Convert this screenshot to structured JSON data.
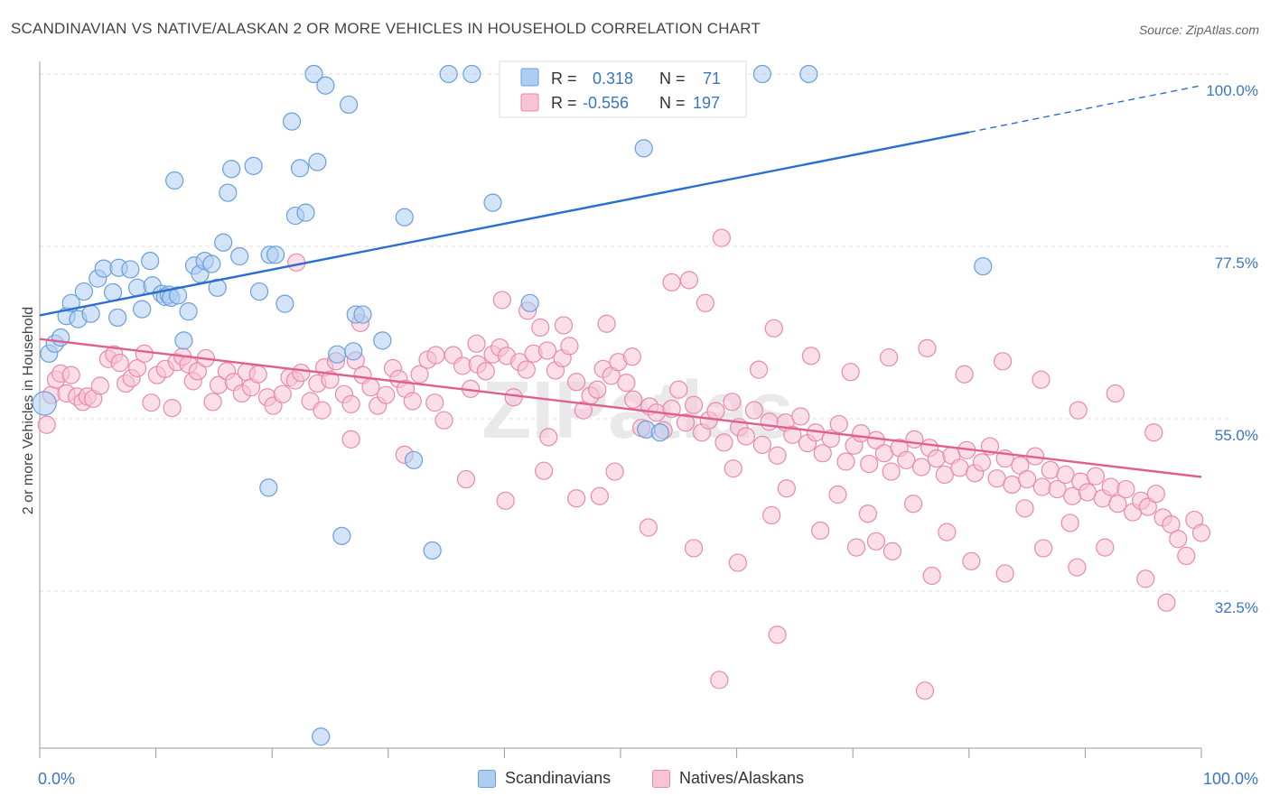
{
  "header": {
    "title": "SCANDINAVIAN VS NATIVE/ALASKAN 2 OR MORE VEHICLES IN HOUSEHOLD CORRELATION CHART",
    "source": "Source: ZipAtlas.com"
  },
  "watermark": "ZIPatlas",
  "colors": {
    "blue_fill": "#aecdf2",
    "blue_stroke": "#6a9fd8",
    "blue_line": "#2a6fcf",
    "pink_fill": "#f7c3d5",
    "pink_stroke": "#e88aab",
    "pink_line": "#e05f8d",
    "value_text": "#3a74c8"
  },
  "chart_data": {
    "type": "scatter",
    "ylabel": "2 or more Vehicles in Household",
    "x_range": [
      0,
      100
    ],
    "y_range": [
      12,
      100
    ],
    "x_tick_labels": [
      "0.0%",
      "100.0%"
    ],
    "y_ticks": [
      {
        "value": 100.0,
        "label": "100.0%"
      },
      {
        "value": 77.5,
        "label": "77.5%"
      },
      {
        "value": 55.0,
        "label": "55.0%"
      },
      {
        "value": 32.5,
        "label": "32.5%"
      }
    ],
    "legend_box": {
      "rows": [
        {
          "r_label": "R =",
          "r_value": "0.318",
          "n_label": "N =",
          "n_value": "71"
        },
        {
          "r_label": "R =",
          "r_value": "-0.556",
          "n_label": "N =",
          "n_value": "197"
        }
      ]
    },
    "series": [
      {
        "name": "Scandinavians",
        "trend": {
          "x0": 0,
          "y0": 68.5,
          "x1": 80,
          "y1": 92.4,
          "dash_to_x": 100,
          "dash_to_y": 98.5
        },
        "points": [
          [
            0.4,
            57
          ],
          [
            0.8,
            63.5
          ],
          [
            1.3,
            64.8
          ],
          [
            1.8,
            65.6
          ],
          [
            2.3,
            68.4
          ],
          [
            2.7,
            70.1
          ],
          [
            3.3,
            68.0
          ],
          [
            3.8,
            71.6
          ],
          [
            4.4,
            68.7
          ],
          [
            5.0,
            73.3
          ],
          [
            5.5,
            74.6
          ],
          [
            6.3,
            71.5
          ],
          [
            6.7,
            68.2
          ],
          [
            6.8,
            74.7
          ],
          [
            7.8,
            74.5
          ],
          [
            8.4,
            72.1
          ],
          [
            8.8,
            69.3
          ],
          [
            9.5,
            75.6
          ],
          [
            9.7,
            72.4
          ],
          [
            10.5,
            71.3
          ],
          [
            10.8,
            70.9
          ],
          [
            11.1,
            71.2
          ],
          [
            11.3,
            70.8
          ],
          [
            11.6,
            86.1
          ],
          [
            11.9,
            71.1
          ],
          [
            12.4,
            65.2
          ],
          [
            12.8,
            69.0
          ],
          [
            13.3,
            75.0
          ],
          [
            13.8,
            73.9
          ],
          [
            14.2,
            75.6
          ],
          [
            14.8,
            75.2
          ],
          [
            15.3,
            72.1
          ],
          [
            15.8,
            78.0
          ],
          [
            16.2,
            84.5
          ],
          [
            16.5,
            87.6
          ],
          [
            17.2,
            76.2
          ],
          [
            18.4,
            88.0
          ],
          [
            18.9,
            71.6
          ],
          [
            19.7,
            46.0
          ],
          [
            19.8,
            76.4
          ],
          [
            20.3,
            76.4
          ],
          [
            21.1,
            70.0
          ],
          [
            21.7,
            93.8
          ],
          [
            22.0,
            81.5
          ],
          [
            22.4,
            87.7
          ],
          [
            22.9,
            81.9
          ],
          [
            23.6,
            100.0
          ],
          [
            23.9,
            88.5
          ],
          [
            24.2,
            13.5
          ],
          [
            24.6,
            98.5
          ],
          [
            25.6,
            63.4
          ],
          [
            26.0,
            39.7
          ],
          [
            26.6,
            96.0
          ],
          [
            27.0,
            63.8
          ],
          [
            27.2,
            68.6
          ],
          [
            27.8,
            68.6
          ],
          [
            29.5,
            65.2
          ],
          [
            31.4,
            81.3
          ],
          [
            32.2,
            49.6
          ],
          [
            33.8,
            37.8
          ],
          [
            35.2,
            100.0
          ],
          [
            37.2,
            100.0
          ],
          [
            39.0,
            83.2
          ],
          [
            42.2,
            70.1
          ],
          [
            47.3,
            100.0
          ],
          [
            52.0,
            90.3
          ],
          [
            52.2,
            53.6
          ],
          [
            53.4,
            53.2
          ],
          [
            62.2,
            100.0
          ],
          [
            66.2,
            100.0
          ],
          [
            81.2,
            74.9
          ]
        ]
      },
      {
        "name": "Natives/Alaskans",
        "trend": {
          "x0": 0,
          "y0": 65.4,
          "x1": 100,
          "y1": 47.4
        },
        "points": [
          [
            0.6,
            54.2
          ],
          [
            1.0,
            58.1
          ],
          [
            1.4,
            60.1
          ],
          [
            1.8,
            60.9
          ],
          [
            2.3,
            58.3
          ],
          [
            2.7,
            60.7
          ],
          [
            3.2,
            57.9
          ],
          [
            3.7,
            57.2
          ],
          [
            4.1,
            57.9
          ],
          [
            4.6,
            57.6
          ],
          [
            5.2,
            59.3
          ],
          [
            5.9,
            62.8
          ],
          [
            6.4,
            63.4
          ],
          [
            6.9,
            62.3
          ],
          [
            7.4,
            59.6
          ],
          [
            7.9,
            60.3
          ],
          [
            8.4,
            61.6
          ],
          [
            9.0,
            63.5
          ],
          [
            9.6,
            57.1
          ],
          [
            10.1,
            60.7
          ],
          [
            10.8,
            61.5
          ],
          [
            11.4,
            56.4
          ],
          [
            11.8,
            62.4
          ],
          [
            12.3,
            63.1
          ],
          [
            12.8,
            62.1
          ],
          [
            13.2,
            59.9
          ],
          [
            13.6,
            61.2
          ],
          [
            14.3,
            62.9
          ],
          [
            14.9,
            57.2
          ],
          [
            15.4,
            59.4
          ],
          [
            16.1,
            61.2
          ],
          [
            16.7,
            59.8
          ],
          [
            17.4,
            58.3
          ],
          [
            17.8,
            61.1
          ],
          [
            18.2,
            59.1
          ],
          [
            18.8,
            60.8
          ],
          [
            19.6,
            57.8
          ],
          [
            20.1,
            56.7
          ],
          [
            20.9,
            58.2
          ],
          [
            21.5,
            60.4
          ],
          [
            22.0,
            60.0
          ],
          [
            22.5,
            61.0
          ],
          [
            23.3,
            57.3
          ],
          [
            23.9,
            59.6
          ],
          [
            24.5,
            61.7
          ],
          [
            25.0,
            60.1
          ],
          [
            25.5,
            62.5
          ],
          [
            26.2,
            58.2
          ],
          [
            26.8,
            56.9
          ],
          [
            27.2,
            62.6
          ],
          [
            27.8,
            60.7
          ],
          [
            28.5,
            59.1
          ],
          [
            29.1,
            56.7
          ],
          [
            29.8,
            58.1
          ],
          [
            30.4,
            61.6
          ],
          [
            30.9,
            60.2
          ],
          [
            31.5,
            58.9
          ],
          [
            32.1,
            57.3
          ],
          [
            32.7,
            60.8
          ],
          [
            33.4,
            62.7
          ],
          [
            34.0,
            57.1
          ],
          [
            34.8,
            54.8
          ],
          [
            35.6,
            63.3
          ],
          [
            36.4,
            61.9
          ],
          [
            37.1,
            58.9
          ],
          [
            37.7,
            62.1
          ],
          [
            38.4,
            61.2
          ],
          [
            39.0,
            63.4
          ],
          [
            39.6,
            64.3
          ],
          [
            40.2,
            63.2
          ],
          [
            40.8,
            57.8
          ],
          [
            41.3,
            62.4
          ],
          [
            41.9,
            61.4
          ],
          [
            42.5,
            63.5
          ],
          [
            43.1,
            66.9
          ],
          [
            43.7,
            63.9
          ],
          [
            44.4,
            61.3
          ],
          [
            45.0,
            62.9
          ],
          [
            45.6,
            64.5
          ],
          [
            46.2,
            59.8
          ],
          [
            46.8,
            56.1
          ],
          [
            47.4,
            58.0
          ],
          [
            48.0,
            58.8
          ],
          [
            48.5,
            61.5
          ],
          [
            49.2,
            60.6
          ],
          [
            49.8,
            62.4
          ],
          [
            50.5,
            59.7
          ],
          [
            51.1,
            57.5
          ],
          [
            51.8,
            53.8
          ],
          [
            52.5,
            56.6
          ],
          [
            53.1,
            55.8
          ],
          [
            53.7,
            53.5
          ],
          [
            54.4,
            56.3
          ],
          [
            55.0,
            58.8
          ],
          [
            55.6,
            54.5
          ],
          [
            56.3,
            56.8
          ],
          [
            57.0,
            53.2
          ],
          [
            57.6,
            54.8
          ],
          [
            58.2,
            56.0
          ],
          [
            58.9,
            51.9
          ],
          [
            59.6,
            57.2
          ],
          [
            60.2,
            53.9
          ],
          [
            60.8,
            52.7
          ],
          [
            61.5,
            56.1
          ],
          [
            62.2,
            51.6
          ],
          [
            62.8,
            54.6
          ],
          [
            63.5,
            50.2
          ],
          [
            64.2,
            54.5
          ],
          [
            64.8,
            52.9
          ],
          [
            65.5,
            55.3
          ],
          [
            66.1,
            51.8
          ],
          [
            66.8,
            53.2
          ],
          [
            67.4,
            50.5
          ],
          [
            68.1,
            52.4
          ],
          [
            68.8,
            54.3
          ],
          [
            69.4,
            49.4
          ],
          [
            70.1,
            51.5
          ],
          [
            70.7,
            53.1
          ],
          [
            71.4,
            49.1
          ],
          [
            72.0,
            52.2
          ],
          [
            72.7,
            50.5
          ],
          [
            73.3,
            48.1
          ],
          [
            74.0,
            51.2
          ],
          [
            74.6,
            49.6
          ],
          [
            75.3,
            52.3
          ],
          [
            75.9,
            48.7
          ],
          [
            76.6,
            51.2
          ],
          [
            77.2,
            49.8
          ],
          [
            77.9,
            47.7
          ],
          [
            78.5,
            50.2
          ],
          [
            79.2,
            48.6
          ],
          [
            79.8,
            50.9
          ],
          [
            80.5,
            47.9
          ],
          [
            81.1,
            49.3
          ],
          [
            81.8,
            51.4
          ],
          [
            82.4,
            47.2
          ],
          [
            83.1,
            49.8
          ],
          [
            83.7,
            46.4
          ],
          [
            84.4,
            48.9
          ],
          [
            85.0,
            47.1
          ],
          [
            85.7,
            50.1
          ],
          [
            86.3,
            46.1
          ],
          [
            87.0,
            48.3
          ],
          [
            87.6,
            45.8
          ],
          [
            88.3,
            47.7
          ],
          [
            88.9,
            44.9
          ],
          [
            89.6,
            46.8
          ],
          [
            90.2,
            45.4
          ],
          [
            90.9,
            47.5
          ],
          [
            91.5,
            44.6
          ],
          [
            92.2,
            46.1
          ],
          [
            92.8,
            43.9
          ],
          [
            93.5,
            45.8
          ],
          [
            94.1,
            42.8
          ],
          [
            94.8,
            44.3
          ],
          [
            95.4,
            43.5
          ],
          [
            96.1,
            45.2
          ],
          [
            96.7,
            42.1
          ],
          [
            97.4,
            41.2
          ],
          [
            98.0,
            39.3
          ],
          [
            98.7,
            37.1
          ],
          [
            99.4,
            41.8
          ],
          [
            100.0,
            40.1
          ],
          [
            22.1,
            75.4
          ],
          [
            27.6,
            67.5
          ],
          [
            34.1,
            63.3
          ],
          [
            37.6,
            64.8
          ],
          [
            39.8,
            70.5
          ],
          [
            42.0,
            69.1
          ],
          [
            45.1,
            67.2
          ],
          [
            48.8,
            67.4
          ],
          [
            51.0,
            63.1
          ],
          [
            54.4,
            72.8
          ],
          [
            55.9,
            73.1
          ],
          [
            57.3,
            70.1
          ],
          [
            58.7,
            78.6
          ],
          [
            61.9,
            61.4
          ],
          [
            63.2,
            66.8
          ],
          [
            66.4,
            63.2
          ],
          [
            69.8,
            61.1
          ],
          [
            73.1,
            63.0
          ],
          [
            76.4,
            64.2
          ],
          [
            79.6,
            60.8
          ],
          [
            82.9,
            62.5
          ],
          [
            86.2,
            60.1
          ],
          [
            89.4,
            56.1
          ],
          [
            92.6,
            58.3
          ],
          [
            95.9,
            53.2
          ],
          [
            24.3,
            56.1
          ],
          [
            26.8,
            52.3
          ],
          [
            31.4,
            50.3
          ],
          [
            36.7,
            47.1
          ],
          [
            40.1,
            44.3
          ],
          [
            43.4,
            48.2
          ],
          [
            46.2,
            44.6
          ],
          [
            48.2,
            44.9
          ],
          [
            52.4,
            40.8
          ],
          [
            56.3,
            38.1
          ],
          [
            60.1,
            36.2
          ],
          [
            63.0,
            42.4
          ],
          [
            67.2,
            40.4
          ],
          [
            70.3,
            38.2
          ],
          [
            73.4,
            37.7
          ],
          [
            76.8,
            34.5
          ],
          [
            80.2,
            36.4
          ],
          [
            83.1,
            34.8
          ],
          [
            86.4,
            38.1
          ],
          [
            89.3,
            35.6
          ],
          [
            91.7,
            38.2
          ],
          [
            95.2,
            34.1
          ],
          [
            97.0,
            31.0
          ],
          [
            43.8,
            52.6
          ],
          [
            49.5,
            48.1
          ],
          [
            59.7,
            48.5
          ],
          [
            64.3,
            45.9
          ],
          [
            68.7,
            45.1
          ],
          [
            71.3,
            42.6
          ],
          [
            75.2,
            43.9
          ],
          [
            78.1,
            40.2
          ],
          [
            84.8,
            43.3
          ],
          [
            88.7,
            41.4
          ],
          [
            58.5,
            20.9
          ],
          [
            63.5,
            26.8
          ],
          [
            76.2,
            19.5
          ],
          [
            72.0,
            39.0
          ]
        ]
      }
    ]
  },
  "bottom_legend": [
    {
      "label": "Scandinavians"
    },
    {
      "label": "Natives/Alaskans"
    }
  ]
}
